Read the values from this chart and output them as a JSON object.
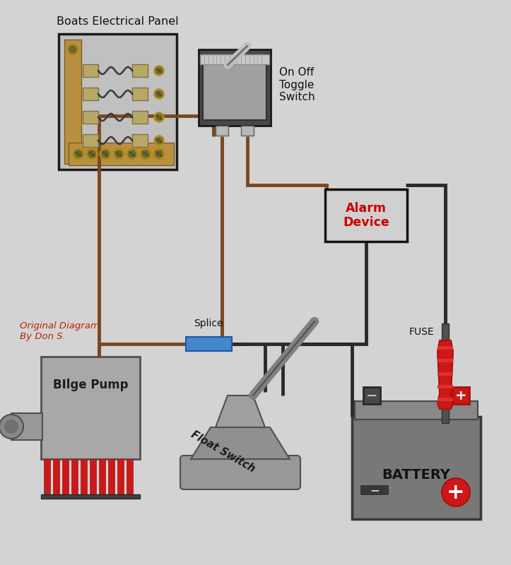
{
  "bg_color": "#d3d3d3",
  "wire_brown": "#7a4820",
  "wire_black": "#2a2a2a",
  "wire_blue": "#4080c0",
  "panel_bg": "#c0c0c0",
  "panel_border": "#1a1a1a",
  "panel_wood": "#b89040",
  "switch_gray": "#a0a0a0",
  "alarm_red": "#cc0000",
  "alarm_bg": "#d0d0d0",
  "title_panel": "Boats Electrical Panel",
  "label_switch": "On Off\nToggle\nSwitch",
  "label_alarm": "Alarm\nDevice",
  "label_pump": "BIlge Pump",
  "label_float": "Float Switch",
  "label_battery": "BATTERY",
  "label_fuse": "FUSE",
  "label_splice": "Splice",
  "label_credit": "Original Diagram\nBy Don S."
}
